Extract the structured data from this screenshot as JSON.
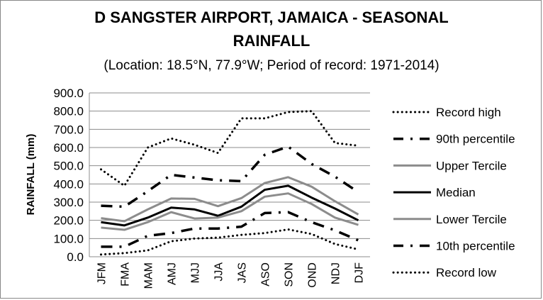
{
  "chart_data": {
    "type": "line",
    "title_line1": "D SANGSTER AIRPORT, JAMAICA - SEASONAL",
    "title_line2": "RAINFALL",
    "subtitle": "(Location: 18.5°N, 77.9°W; Period of record: 1971-2014)",
    "xlabel": "",
    "ylabel": "RAINFALL (mm)",
    "ylim": [
      0,
      900
    ],
    "yticks": [
      "0.0",
      "100.0",
      "200.0",
      "300.0",
      "400.0",
      "500.0",
      "600.0",
      "700.0",
      "800.0",
      "900.0"
    ],
    "grid": true,
    "legend_placement": "right",
    "categories": [
      "JFM",
      "FMA",
      "MAM",
      "AMJ",
      "MJJ",
      "JJA",
      "JAS",
      "ASO",
      "SON",
      "OND",
      "NDJ",
      "DJF"
    ],
    "series": [
      {
        "name": "Record high",
        "style": "dotted",
        "color": "#000000",
        "values": [
          480,
          390,
          600,
          650,
          615,
          570,
          760,
          760,
          795,
          800,
          625,
          610
        ]
      },
      {
        "name": "90th percentile",
        "style": "dashdot",
        "color": "#000000",
        "values": [
          280,
          275,
          360,
          450,
          435,
          420,
          415,
          560,
          605,
          510,
          440,
          355
        ]
      },
      {
        "name": "Upper Tercile",
        "style": "solid",
        "color": "#8c8c8c",
        "values": [
          212,
          195,
          260,
          320,
          318,
          278,
          322,
          405,
          437,
          385,
          305,
          232
        ]
      },
      {
        "name": "Median",
        "style": "solid",
        "color": "#000000",
        "values": [
          190,
          172,
          215,
          270,
          260,
          225,
          275,
          368,
          390,
          325,
          265,
          200
        ]
      },
      {
        "name": "Lower Tercile",
        "style": "solid",
        "color": "#8c8c8c",
        "values": [
          160,
          148,
          190,
          245,
          210,
          215,
          250,
          330,
          348,
          290,
          215,
          175
        ]
      },
      {
        "name": "10th percentile",
        "style": "dashdot",
        "color": "#000000",
        "values": [
          55,
          55,
          115,
          130,
          155,
          155,
          165,
          240,
          245,
          190,
          145,
          90
        ]
      },
      {
        "name": "Record low",
        "style": "dotted",
        "color": "#000000",
        "values": [
          12,
          20,
          35,
          85,
          100,
          105,
          120,
          130,
          150,
          125,
          70,
          40
        ]
      }
    ]
  }
}
